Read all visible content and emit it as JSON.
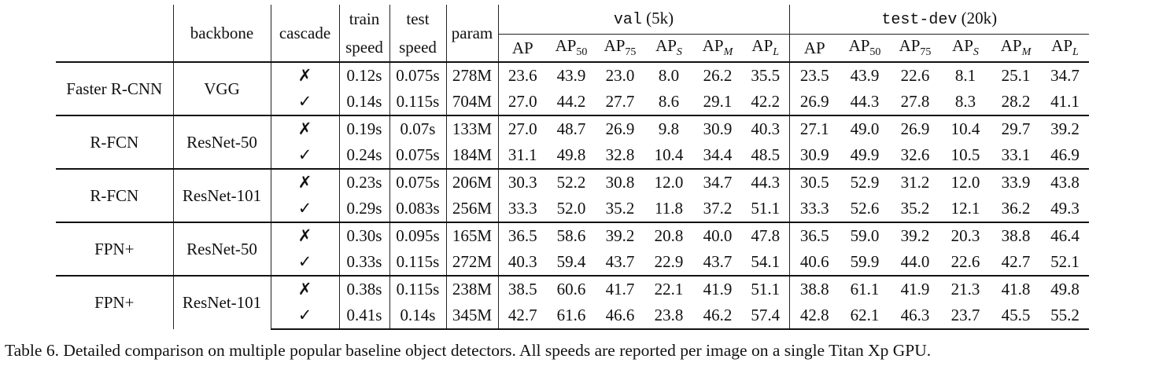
{
  "headers": {
    "backbone": "backbone",
    "cascade": "cascade",
    "train_speed_l1": "train",
    "train_speed_l2": "speed",
    "test_speed_l1": "test",
    "test_speed_l2": "speed",
    "param": "param",
    "val_name": "val",
    "val_count": "(5k)",
    "testdev_name": "test-dev",
    "testdev_count": "(20k)",
    "metrics": [
      {
        "base": "AP",
        "sub": ""
      },
      {
        "base": "AP",
        "sub": "50"
      },
      {
        "base": "AP",
        "sub": "75"
      },
      {
        "base": "AP",
        "sub": "S"
      },
      {
        "base": "AP",
        "sub": "M"
      },
      {
        "base": "AP",
        "sub": "L"
      }
    ]
  },
  "groups": [
    {
      "detector": "Faster R-CNN",
      "backbone": "VGG",
      "rows": [
        {
          "cascade": "✗",
          "train": "0.12s",
          "test": "0.075s",
          "param": "278M",
          "val": [
            "23.6",
            "43.9",
            "23.0",
            "8.0",
            "26.2",
            "35.5"
          ],
          "testdev": [
            "23.5",
            "43.9",
            "22.6",
            "8.1",
            "25.1",
            "34.7"
          ]
        },
        {
          "cascade": "✓",
          "train": "0.14s",
          "test": "0.115s",
          "param": "704M",
          "val": [
            "27.0",
            "44.2",
            "27.7",
            "8.6",
            "29.1",
            "42.2"
          ],
          "testdev": [
            "26.9",
            "44.3",
            "27.8",
            "8.3",
            "28.2",
            "41.1"
          ]
        }
      ]
    },
    {
      "detector": "R-FCN",
      "backbone": "ResNet-50",
      "rows": [
        {
          "cascade": "✗",
          "train": "0.19s",
          "test": "0.07s",
          "param": "133M",
          "val": [
            "27.0",
            "48.7",
            "26.9",
            "9.8",
            "30.9",
            "40.3"
          ],
          "testdev": [
            "27.1",
            "49.0",
            "26.9",
            "10.4",
            "29.7",
            "39.2"
          ]
        },
        {
          "cascade": "✓",
          "train": "0.24s",
          "test": "0.075s",
          "param": "184M",
          "val": [
            "31.1",
            "49.8",
            "32.8",
            "10.4",
            "34.4",
            "48.5"
          ],
          "testdev": [
            "30.9",
            "49.9",
            "32.6",
            "10.5",
            "33.1",
            "46.9"
          ]
        }
      ]
    },
    {
      "detector": "R-FCN",
      "backbone": "ResNet-101",
      "rows": [
        {
          "cascade": "✗",
          "train": "0.23s",
          "test": "0.075s",
          "param": "206M",
          "val": [
            "30.3",
            "52.2",
            "30.8",
            "12.0",
            "34.7",
            "44.3"
          ],
          "testdev": [
            "30.5",
            "52.9",
            "31.2",
            "12.0",
            "33.9",
            "43.8"
          ]
        },
        {
          "cascade": "✓",
          "train": "0.29s",
          "test": "0.083s",
          "param": "256M",
          "val": [
            "33.3",
            "52.0",
            "35.2",
            "11.8",
            "37.2",
            "51.1"
          ],
          "testdev": [
            "33.3",
            "52.6",
            "35.2",
            "12.1",
            "36.2",
            "49.3"
          ]
        }
      ]
    },
    {
      "detector": "FPN+",
      "backbone": "ResNet-50",
      "rows": [
        {
          "cascade": "✗",
          "train": "0.30s",
          "test": "0.095s",
          "param": "165M",
          "val": [
            "36.5",
            "58.6",
            "39.2",
            "20.8",
            "40.0",
            "47.8"
          ],
          "testdev": [
            "36.5",
            "59.0",
            "39.2",
            "20.3",
            "38.8",
            "46.4"
          ]
        },
        {
          "cascade": "✓",
          "train": "0.33s",
          "test": "0.115s",
          "param": "272M",
          "val": [
            "40.3",
            "59.4",
            "43.7",
            "22.9",
            "43.7",
            "54.1"
          ],
          "testdev": [
            "40.6",
            "59.9",
            "44.0",
            "22.6",
            "42.7",
            "52.1"
          ]
        }
      ]
    },
    {
      "detector": "FPN+",
      "backbone": "ResNet-101",
      "rows": [
        {
          "cascade": "✗",
          "train": "0.38s",
          "test": "0.115s",
          "param": "238M",
          "val": [
            "38.5",
            "60.6",
            "41.7",
            "22.1",
            "41.9",
            "51.1"
          ],
          "testdev": [
            "38.8",
            "61.1",
            "41.9",
            "21.3",
            "41.8",
            "49.8"
          ]
        },
        {
          "cascade": "✓",
          "train": "0.41s",
          "test": "0.14s",
          "param": "345M",
          "val": [
            "42.7",
            "61.6",
            "46.6",
            "23.8",
            "46.2",
            "57.4"
          ],
          "testdev": [
            "42.8",
            "62.1",
            "46.3",
            "23.7",
            "45.5",
            "55.2"
          ]
        }
      ]
    }
  ],
  "caption": "Table 6. Detailed comparison on multiple popular baseline object detectors. All speeds are reported per image on a single Titan Xp GPU."
}
